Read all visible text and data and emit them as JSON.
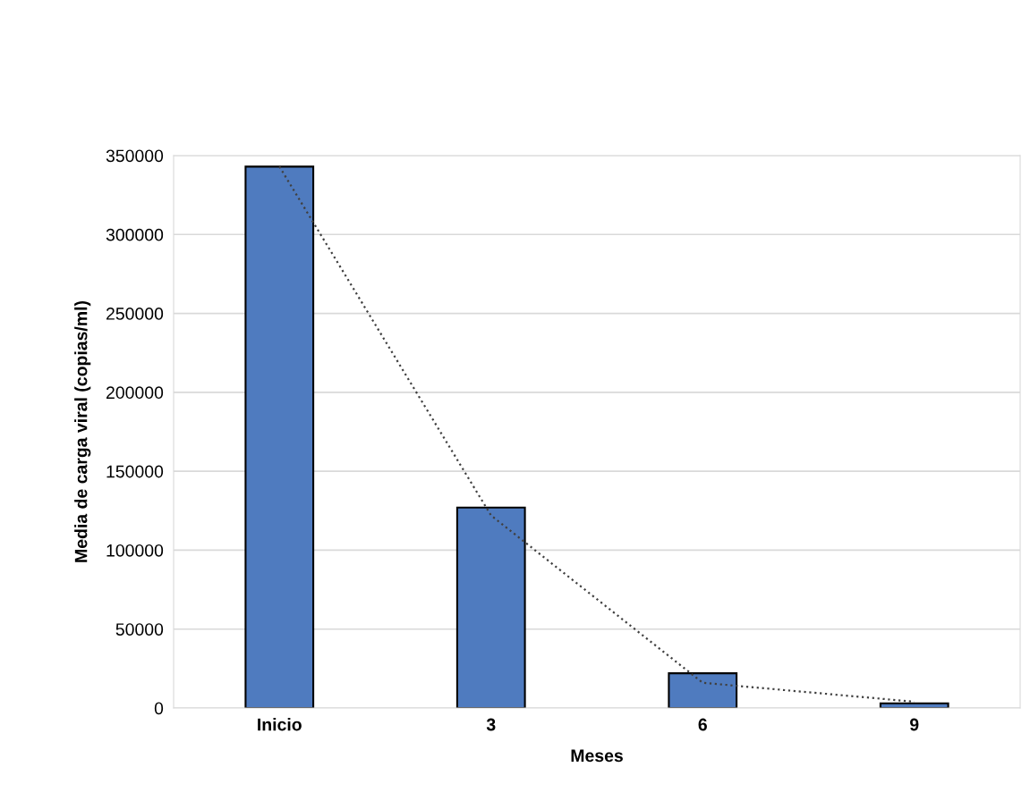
{
  "chart_data": {
    "type": "bar",
    "xlabel": "Meses",
    "ylabel": "Media de carga viral (copias/ml)",
    "categories": [
      "Inicio",
      "3",
      "6",
      "9"
    ],
    "series": [
      {
        "color": "#4f7bbf",
        "values": [
          343000,
          127000,
          22000,
          3000
        ]
      },
      {
        "type": "line",
        "color": "#404040",
        "line_style": "dotted",
        "values": [
          343000,
          122000,
          16000,
          4000
        ]
      }
    ],
    "ylim": [
      0,
      350000
    ],
    "yticks": [
      0,
      50000,
      100000,
      150000,
      200000,
      250000,
      300000,
      350000
    ],
    "grid": "y",
    "legend": false
  }
}
